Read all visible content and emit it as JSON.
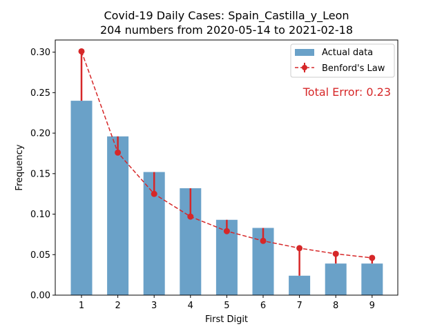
{
  "chart_data": {
    "type": "bar",
    "title": "Covid-19 Daily Cases: Spain_Castilla_y_Leon",
    "subtitle": "204 numbers from 2020-05-14 to 2021-02-18",
    "xlabel": "First Digit",
    "ylabel": "Frequency",
    "ylim": [
      0,
      0.315
    ],
    "yticks": [
      "0.00",
      "0.05",
      "0.10",
      "0.15",
      "0.20",
      "0.25",
      "0.30"
    ],
    "categories": [
      "1",
      "2",
      "3",
      "4",
      "5",
      "6",
      "7",
      "8",
      "9"
    ],
    "series": [
      {
        "name": "Actual data",
        "type": "bar",
        "color": "#6aa1c8",
        "values": [
          0.24,
          0.196,
          0.152,
          0.132,
          0.093,
          0.083,
          0.024,
          0.039,
          0.039
        ]
      },
      {
        "name": "Benford's Law",
        "type": "line",
        "color": "#d62728",
        "values": [
          0.301,
          0.176,
          0.125,
          0.097,
          0.079,
          0.067,
          0.058,
          0.051,
          0.046
        ]
      }
    ],
    "annotation": "Total Error: 0.23",
    "legend_position": "top-right",
    "grid": false
  }
}
